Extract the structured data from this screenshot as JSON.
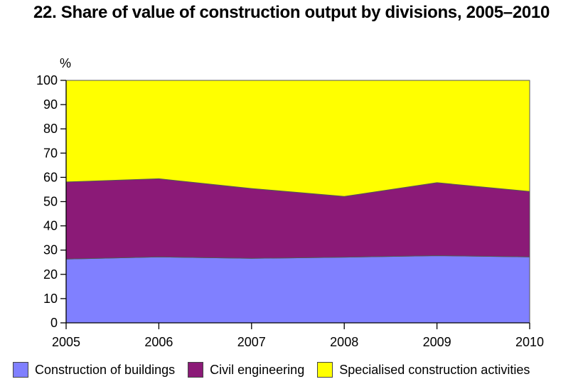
{
  "chart_data": {
    "type": "area",
    "stacked": true,
    "title": "22. Share of value of construction output by divisions, 2005–2010",
    "ylabel": "%",
    "xlabel": "",
    "x": [
      "2005",
      "2006",
      "2007",
      "2008",
      "2009",
      "2010"
    ],
    "ylim": [
      0,
      100
    ],
    "yticks": [
      0,
      10,
      20,
      30,
      40,
      50,
      60,
      70,
      80,
      90,
      100
    ],
    "grid": false,
    "legend_position": "bottom",
    "series": [
      {
        "name": "Construction of buildings",
        "color": "#8080ff",
        "values": [
          26.3,
          27.2,
          26.6,
          27.1,
          27.7,
          27.2
        ]
      },
      {
        "name": "Civil engineering",
        "color": "#8b1a77",
        "values": [
          31.8,
          32.2,
          28.8,
          25.0,
          30.1,
          27.0
        ]
      },
      {
        "name": "Specialised construction activities",
        "color": "#ffff00",
        "values": [
          41.9,
          40.6,
          44.6,
          47.9,
          42.2,
          45.8
        ]
      }
    ]
  }
}
